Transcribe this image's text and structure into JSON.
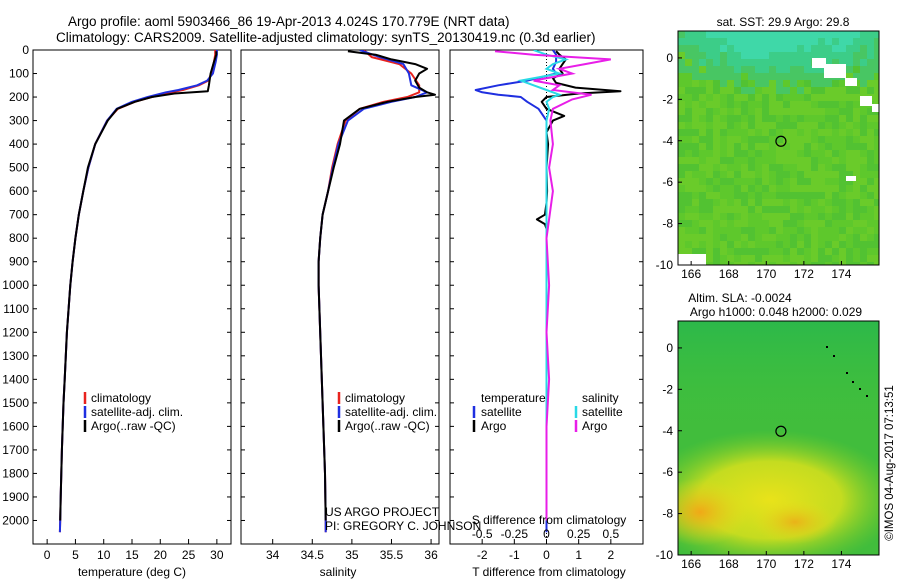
{
  "header": {
    "line1": "Argo profile: aoml 5903466_86 19-Apr-2013 4.024S 170.779E (NRT data)",
    "line2": "Climatology: CARS2009. Satellite-adjusted climatology: synTS_20130419.nc (0.3d earlier)"
  },
  "colors": {
    "climatology": "#e8231e",
    "satellite": "#1f2fe0",
    "argo": "#000000",
    "sal_satellite": "#29d9e6",
    "sal_argo": "#e81ee8"
  },
  "chart_data": [
    {
      "id": "temperature",
      "type": "line",
      "xlabel": "temperature (deg C)",
      "x_ticks": [
        0,
        5,
        10,
        15,
        20,
        25,
        30
      ],
      "xlim": [
        -2.5,
        32.5
      ],
      "ylim": [
        2100,
        0
      ],
      "y_ticks": [
        0,
        100,
        200,
        300,
        400,
        500,
        600,
        700,
        800,
        900,
        1000,
        1100,
        1200,
        1300,
        1400,
        1500,
        1600,
        1700,
        1800,
        1900,
        2000
      ],
      "legend": [
        "climatology",
        "satellite-adj. clim.",
        "Argo(..raw -QC)"
      ],
      "series": [
        {
          "name": "climatology",
          "color_key": "climatology",
          "depth": [
            0,
            20,
            50,
            100,
            130,
            150,
            170,
            180,
            200,
            220,
            250,
            300,
            400,
            500,
            600,
            700,
            800,
            900,
            1000,
            1100,
            1200,
            1300,
            1400,
            1500,
            1600,
            1700,
            1800,
            1900,
            2000,
            2050
          ],
          "values": [
            29.7,
            29.7,
            29.5,
            29.0,
            28.5,
            26.8,
            24.0,
            22.0,
            18.5,
            15.5,
            12.5,
            10.6,
            8.5,
            7.3,
            6.4,
            5.6,
            5.0,
            4.5,
            4.1,
            3.8,
            3.5,
            3.3,
            3.1,
            2.9,
            2.75,
            2.6,
            2.5,
            2.4,
            2.3,
            2.25
          ]
        },
        {
          "name": "satellite-adj. clim.",
          "color_key": "satellite",
          "depth": [
            0,
            20,
            50,
            100,
            130,
            150,
            170,
            180,
            200,
            220,
            250,
            300,
            400,
            500,
            600,
            700,
            800,
            900,
            1000,
            1100,
            1200,
            1300,
            1400,
            1500,
            1600,
            1700,
            1800,
            1900,
            2000,
            2050
          ],
          "values": [
            30.0,
            30.0,
            29.8,
            29.3,
            28.3,
            26.5,
            23.2,
            21.0,
            17.8,
            15.0,
            12.3,
            10.6,
            8.5,
            7.3,
            6.4,
            5.6,
            5.0,
            4.5,
            4.1,
            3.8,
            3.5,
            3.3,
            3.1,
            2.9,
            2.75,
            2.6,
            2.5,
            2.4,
            2.3,
            2.25
          ]
        },
        {
          "name": "Argo(..raw -QC)",
          "color_key": "argo",
          "depth": [
            5,
            20,
            50,
            100,
            150,
            175,
            185,
            200,
            220,
            250,
            300,
            400,
            500,
            600,
            700,
            800,
            900,
            1000,
            1100,
            1200,
            1300,
            1400,
            1500,
            1600,
            1700,
            1800,
            1900,
            2000
          ],
          "values": [
            29.9,
            29.9,
            29.5,
            28.9,
            28.6,
            28.4,
            22.5,
            18.5,
            15.5,
            12.4,
            10.7,
            8.5,
            7.2,
            6.4,
            5.6,
            5.0,
            4.5,
            4.1,
            3.8,
            3.5,
            3.3,
            3.1,
            2.9,
            2.75,
            2.6,
            2.5,
            2.4,
            2.3
          ]
        }
      ]
    },
    {
      "id": "salinity",
      "type": "line",
      "xlabel": "salinity",
      "x_ticks": [
        34,
        34.5,
        35,
        35.5,
        36
      ],
      "xlim": [
        33.6,
        36.1
      ],
      "ylim": [
        2100,
        0
      ],
      "legend": [
        "climatology",
        "satellite-adj. clim.",
        "Argo(..raw -QC)"
      ],
      "annotation": [
        "US ARGO PROJECT",
        "PI: GREGORY C. JOHNSON"
      ],
      "series": [
        {
          "name": "climatology",
          "color_key": "climatology",
          "depth": [
            0,
            30,
            60,
            100,
            150,
            180,
            200,
            220,
            250,
            300,
            400,
            500,
            600,
            700,
            800,
            900,
            1000,
            1200,
            1400,
            1600,
            1800,
            2000,
            2050
          ],
          "values": [
            35.15,
            35.25,
            35.6,
            35.75,
            35.85,
            35.85,
            35.7,
            35.4,
            35.1,
            34.92,
            34.82,
            34.75,
            34.7,
            34.63,
            34.6,
            34.58,
            34.58,
            34.6,
            34.62,
            34.64,
            34.66,
            34.67,
            34.67
          ]
        },
        {
          "name": "satellite-adj. clim.",
          "color_key": "satellite",
          "depth": [
            0,
            30,
            60,
            100,
            150,
            180,
            200,
            220,
            250,
            300,
            400,
            500,
            600,
            700,
            800,
            900,
            1000,
            1200,
            1400,
            1600,
            1800,
            2000,
            2050
          ],
          "values": [
            35.1,
            35.35,
            35.65,
            35.72,
            35.75,
            35.95,
            35.8,
            35.5,
            35.15,
            34.95,
            34.83,
            34.76,
            34.7,
            34.63,
            34.6,
            34.58,
            34.58,
            34.6,
            34.62,
            34.64,
            34.66,
            34.67,
            34.67
          ]
        },
        {
          "name": "Argo(..raw -QC)",
          "color_key": "argo",
          "depth": [
            5,
            20,
            40,
            60,
            80,
            100,
            130,
            160,
            180,
            190,
            200,
            220,
            250,
            300,
            400,
            500,
            600,
            700,
            800,
            900,
            1000,
            1200,
            1400,
            1600,
            1800,
            2000
          ],
          "values": [
            34.95,
            35.3,
            35.5,
            35.8,
            35.95,
            35.85,
            35.8,
            35.85,
            35.95,
            36.05,
            35.8,
            35.45,
            35.1,
            34.9,
            34.85,
            34.77,
            34.7,
            34.63,
            34.6,
            34.58,
            34.58,
            34.6,
            34.62,
            34.64,
            34.66,
            34.67
          ]
        }
      ]
    },
    {
      "id": "difference",
      "type": "line",
      "xlabel": "T difference from climatology",
      "xlabel_top": "S difference from climatology",
      "x_ticks": [
        -2,
        -1,
        0,
        1,
        2
      ],
      "s_ticks": [
        -0.5,
        -0.25,
        0,
        0.25,
        0.5
      ],
      "s_tick_labels": [
        "-0.5",
        "-0.25",
        "0",
        "0.25",
        "0.5"
      ],
      "xlim": [
        -3,
        3
      ],
      "ylim": [
        2100,
        0
      ],
      "legend_temperature": {
        "title": "temperature",
        "items": [
          "satellite",
          "Argo"
        ]
      },
      "legend_salinity": {
        "title": "salinity",
        "items": [
          "satellite",
          "Argo"
        ]
      },
      "series": [
        {
          "name": "T satellite",
          "color_key": "satellite",
          "depth": [
            0,
            20,
            50,
            80,
            100,
            130,
            150,
            170,
            180,
            190,
            200,
            220,
            250,
            300,
            400,
            600,
            1000,
            1500,
            2000,
            2050
          ],
          "values": [
            0.2,
            0.3,
            0.3,
            0.2,
            0.3,
            -0.6,
            -1.5,
            -2.2,
            -2.0,
            -1.5,
            -0.8,
            -0.6,
            -0.25,
            0,
            0,
            0,
            0,
            0,
            0,
            0
          ]
        },
        {
          "name": "T Argo",
          "color_key": "argo",
          "depth": [
            5,
            20,
            40,
            60,
            80,
            100,
            120,
            140,
            160,
            175,
            185,
            200,
            220,
            250,
            280,
            300,
            350,
            400,
            500,
            600,
            650,
            700,
            720,
            740,
            760,
            800,
            1000,
            1500,
            2000
          ],
          "values": [
            0.3,
            0.4,
            0.6,
            0.5,
            0.4,
            0.5,
            0.2,
            0.3,
            0.9,
            2.3,
            1.0,
            0.0,
            -0.15,
            0.0,
            0.55,
            0.2,
            0.0,
            0.05,
            0.0,
            0.02,
            0.0,
            -0.05,
            -0.3,
            -0.05,
            0.0,
            0.0,
            0.0,
            0.0,
            0.0
          ]
        },
        {
          "name": "S satellite",
          "color_key": "sal_satellite",
          "depth": [
            0,
            20,
            40,
            60,
            80,
            100,
            130,
            150,
            170,
            190,
            200,
            220,
            250,
            300,
            400,
            600,
            800,
            1000,
            1500,
            2000
          ],
          "values": [
            -0.1,
            0.0,
            0.15,
            0.05,
            0.0,
            0.1,
            -0.2,
            -0.1,
            0.0,
            0.1,
            0.05,
            0.0,
            0.02,
            0.0,
            0.0,
            0.0,
            0.0,
            0.0,
            0.0,
            0.0
          ]
        },
        {
          "name": "S Argo",
          "color_key": "sal_argo",
          "depth": [
            5,
            20,
            40,
            60,
            80,
            100,
            130,
            150,
            170,
            190,
            210,
            250,
            300,
            400,
            500,
            600,
            800,
            1000,
            1200,
            1400,
            1600,
            1800,
            2000
          ],
          "values": [
            -0.4,
            -0.1,
            0.5,
            0.3,
            0.1,
            0.2,
            -0.1,
            0.1,
            0.05,
            0.35,
            0.2,
            0.05,
            0.03,
            0.05,
            0.02,
            0.05,
            0.0,
            0.02,
            0.0,
            0.02,
            0.0,
            0.0,
            0.0
          ]
        }
      ]
    },
    {
      "id": "sst_map",
      "type": "heatmap",
      "title": "sat. SST: 29.9 Argo: 29.8",
      "x_ticks": [
        166,
        168,
        170,
        172,
        174
      ],
      "y_ticks": [
        0,
        -2,
        -4,
        -6,
        -8,
        -10
      ],
      "xlim": [
        165.3,
        176.0
      ],
      "ylim": [
        -10,
        1.3
      ],
      "marker": {
        "lon": 170.779,
        "lat": -4.024
      }
    },
    {
      "id": "sla_map",
      "type": "heatmap",
      "title_lines": [
        "Altim. SLA: -0.0024",
        "Argo h1000: 0.048 h2000: 0.029"
      ],
      "x_ticks": [
        166,
        168,
        170,
        172,
        174
      ],
      "y_ticks": [
        0,
        -2,
        -4,
        -6,
        -8,
        -10
      ],
      "xlim": [
        165.3,
        176.0
      ],
      "ylim": [
        -10,
        1.3
      ],
      "marker": {
        "lon": 170.779,
        "lat": -4.024
      }
    }
  ],
  "footer": {
    "credit": "©IMOS 04-Aug-2017 07:13:51"
  }
}
